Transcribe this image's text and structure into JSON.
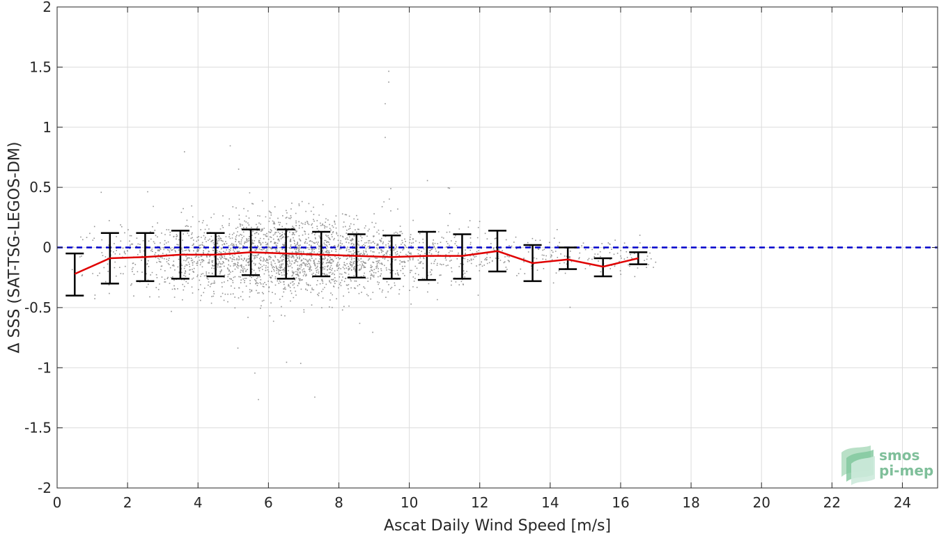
{
  "chart_data": {
    "type": "scatter",
    "xlabel": "Ascat Daily Wind Speed [m/s]",
    "ylabel": "Δ SSS (SAT-TSG-LEGOS-DM)",
    "xlim": [
      0,
      25
    ],
    "ylim": [
      -2,
      2
    ],
    "x_ticks": [
      0,
      2,
      4,
      6,
      8,
      10,
      12,
      14,
      16,
      18,
      20,
      22,
      24
    ],
    "y_ticks": [
      -2,
      -1.5,
      -1,
      -0.5,
      0,
      0.5,
      1,
      1.5,
      2
    ],
    "y_tick_labels": [
      "-2",
      "-1.5",
      "-1",
      "-0.5",
      "0",
      "0.5",
      "1",
      "1.5",
      "2"
    ],
    "grid": true,
    "reference_line": {
      "y": 0,
      "color": "#0000cc",
      "style": "dashed"
    },
    "colors": {
      "scatter": "#808080",
      "mean_line": "#e00000",
      "error_bars": "#000000",
      "reference": "#0000cc"
    },
    "series": [
      {
        "type": "line-with-errorbars",
        "x": [
          0.5,
          1.5,
          2.5,
          3.5,
          4.5,
          5.5,
          6.5,
          7.5,
          8.5,
          9.5,
          10.5,
          11.5,
          12.5,
          13.5,
          14.5,
          15.5,
          16.5
        ],
        "mean": [
          -0.22,
          -0.09,
          -0.08,
          -0.06,
          -0.06,
          -0.04,
          -0.05,
          -0.06,
          -0.07,
          -0.08,
          -0.07,
          -0.07,
          -0.03,
          -0.13,
          -0.1,
          -0.16,
          -0.09
        ],
        "lower": [
          -0.4,
          -0.3,
          -0.28,
          -0.26,
          -0.24,
          -0.23,
          -0.26,
          -0.24,
          -0.25,
          -0.26,
          -0.27,
          -0.26,
          -0.2,
          -0.28,
          -0.18,
          -0.24,
          -0.14
        ],
        "upper": [
          -0.05,
          0.12,
          0.12,
          0.14,
          0.12,
          0.15,
          0.15,
          0.13,
          0.11,
          0.1,
          0.13,
          0.11,
          0.14,
          0.02,
          0.0,
          -0.09,
          -0.04
        ]
      }
    ],
    "scatter_cloud": {
      "x_range": [
        0.4,
        17.0
      ],
      "center_x": 6.5,
      "center_y": -0.07,
      "outliers": [
        {
          "x": 9.4,
          "y": 1.47
        },
        {
          "x": 9.4,
          "y": 1.38
        },
        {
          "x": 9.3,
          "y": 1.2
        },
        {
          "x": 9.3,
          "y": 0.92
        },
        {
          "x": 3.6,
          "y": 0.8
        },
        {
          "x": 4.9,
          "y": 0.85
        },
        {
          "x": 5.6,
          "y": -1.04
        },
        {
          "x": 5.7,
          "y": -1.26
        },
        {
          "x": 7.3,
          "y": -1.24
        },
        {
          "x": 6.5,
          "y": -0.95
        },
        {
          "x": 6.9,
          "y": -0.96
        }
      ]
    },
    "logo": {
      "line1": "smos",
      "line2": "pi-mep"
    }
  }
}
